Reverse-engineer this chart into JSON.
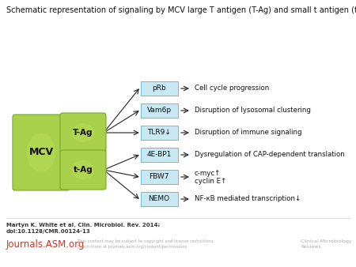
{
  "title": "Schematic representation of signaling by MCV large T antigen (T-Ag) and small t antigen (t-Ag).",
  "title_fontsize": 7.0,
  "bg_color": "#ffffff",
  "mcv_label": "MCV",
  "tag_label": "T-Ag",
  "tag_label2": "t-Ag",
  "green_face": "#a8d04a",
  "green_edge": "#78a828",
  "green_light": "#c0e060",
  "box_face": "#c8e8f4",
  "box_edge": "#70b8d8",
  "boxes": [
    "pRb",
    "Vam6p",
    "TLR9↓",
    "4E-BP1",
    "FBW7",
    "NEMO"
  ],
  "box_effects": [
    "Cell cycle progression",
    "Disruption of lysosomal clustering",
    "Disruption of immune signaling",
    "Dysregulation of CAP-dependent translation",
    "c-myc↑\ncyclin E↑",
    "NF-κB mediated transcription↓"
  ],
  "footer_bold": "Martyn K. White et al. Clin. Microbiol. Rev. 2014;\ndoi:10.1128/CMR.00124-13",
  "footer_journal": "Journals.ASM.org",
  "footer_copyright": "This content may be subject to copyright and license restrictions.\nLearn more at journals.asm.org/content/permissions",
  "footer_journal_name": "Clinical Microbiology\nReviews",
  "journal_color": "#c0392b",
  "footer_color": "#aaaaaa",
  "footer_bold_color": "#333333"
}
